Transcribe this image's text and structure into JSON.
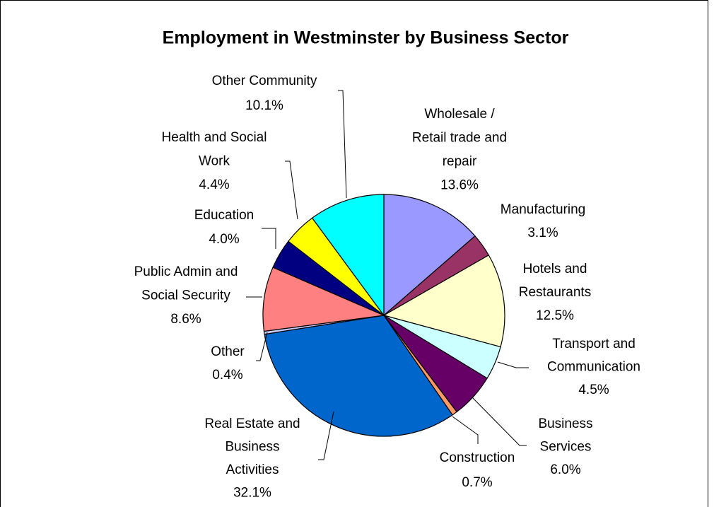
{
  "chart_data": {
    "type": "pie",
    "title": "Employment in Westminster by Business Sector",
    "categories": [
      [
        "Wholesale /",
        "Retail trade and",
        "repair"
      ],
      [
        "Manufacturing"
      ],
      [
        "Hotels and",
        "Restaurants"
      ],
      [
        "Transport and",
        "Communication"
      ],
      [
        "Business",
        "Services"
      ],
      [
        "Construction"
      ],
      [
        "Real Estate and",
        "Business",
        "Activities"
      ],
      [
        "Other"
      ],
      [
        "Public Admin and",
        "Social Security"
      ],
      [
        "Education"
      ],
      [
        "Health and Social",
        "Work"
      ],
      [
        "Other Community"
      ]
    ],
    "values": [
      13.6,
      3.1,
      12.5,
      4.5,
      6.0,
      0.7,
      32.1,
      0.4,
      8.6,
      4.0,
      4.4,
      10.1
    ],
    "value_labels": [
      "13.6%",
      "3.1%",
      "12.5%",
      "4.5%",
      "6.0%",
      "0.7%",
      "32.1%",
      "0.4%",
      "8.6%",
      "4.0%",
      "4.4%",
      "10.1%"
    ],
    "colors": [
      "#9999ff",
      "#993366",
      "#ffffcc",
      "#ccffff",
      "#660066",
      "#ff9966",
      "#0066cc",
      "#ccccff",
      "#ff8080",
      "#000080",
      "#ffff00",
      "#00ffff"
    ]
  }
}
